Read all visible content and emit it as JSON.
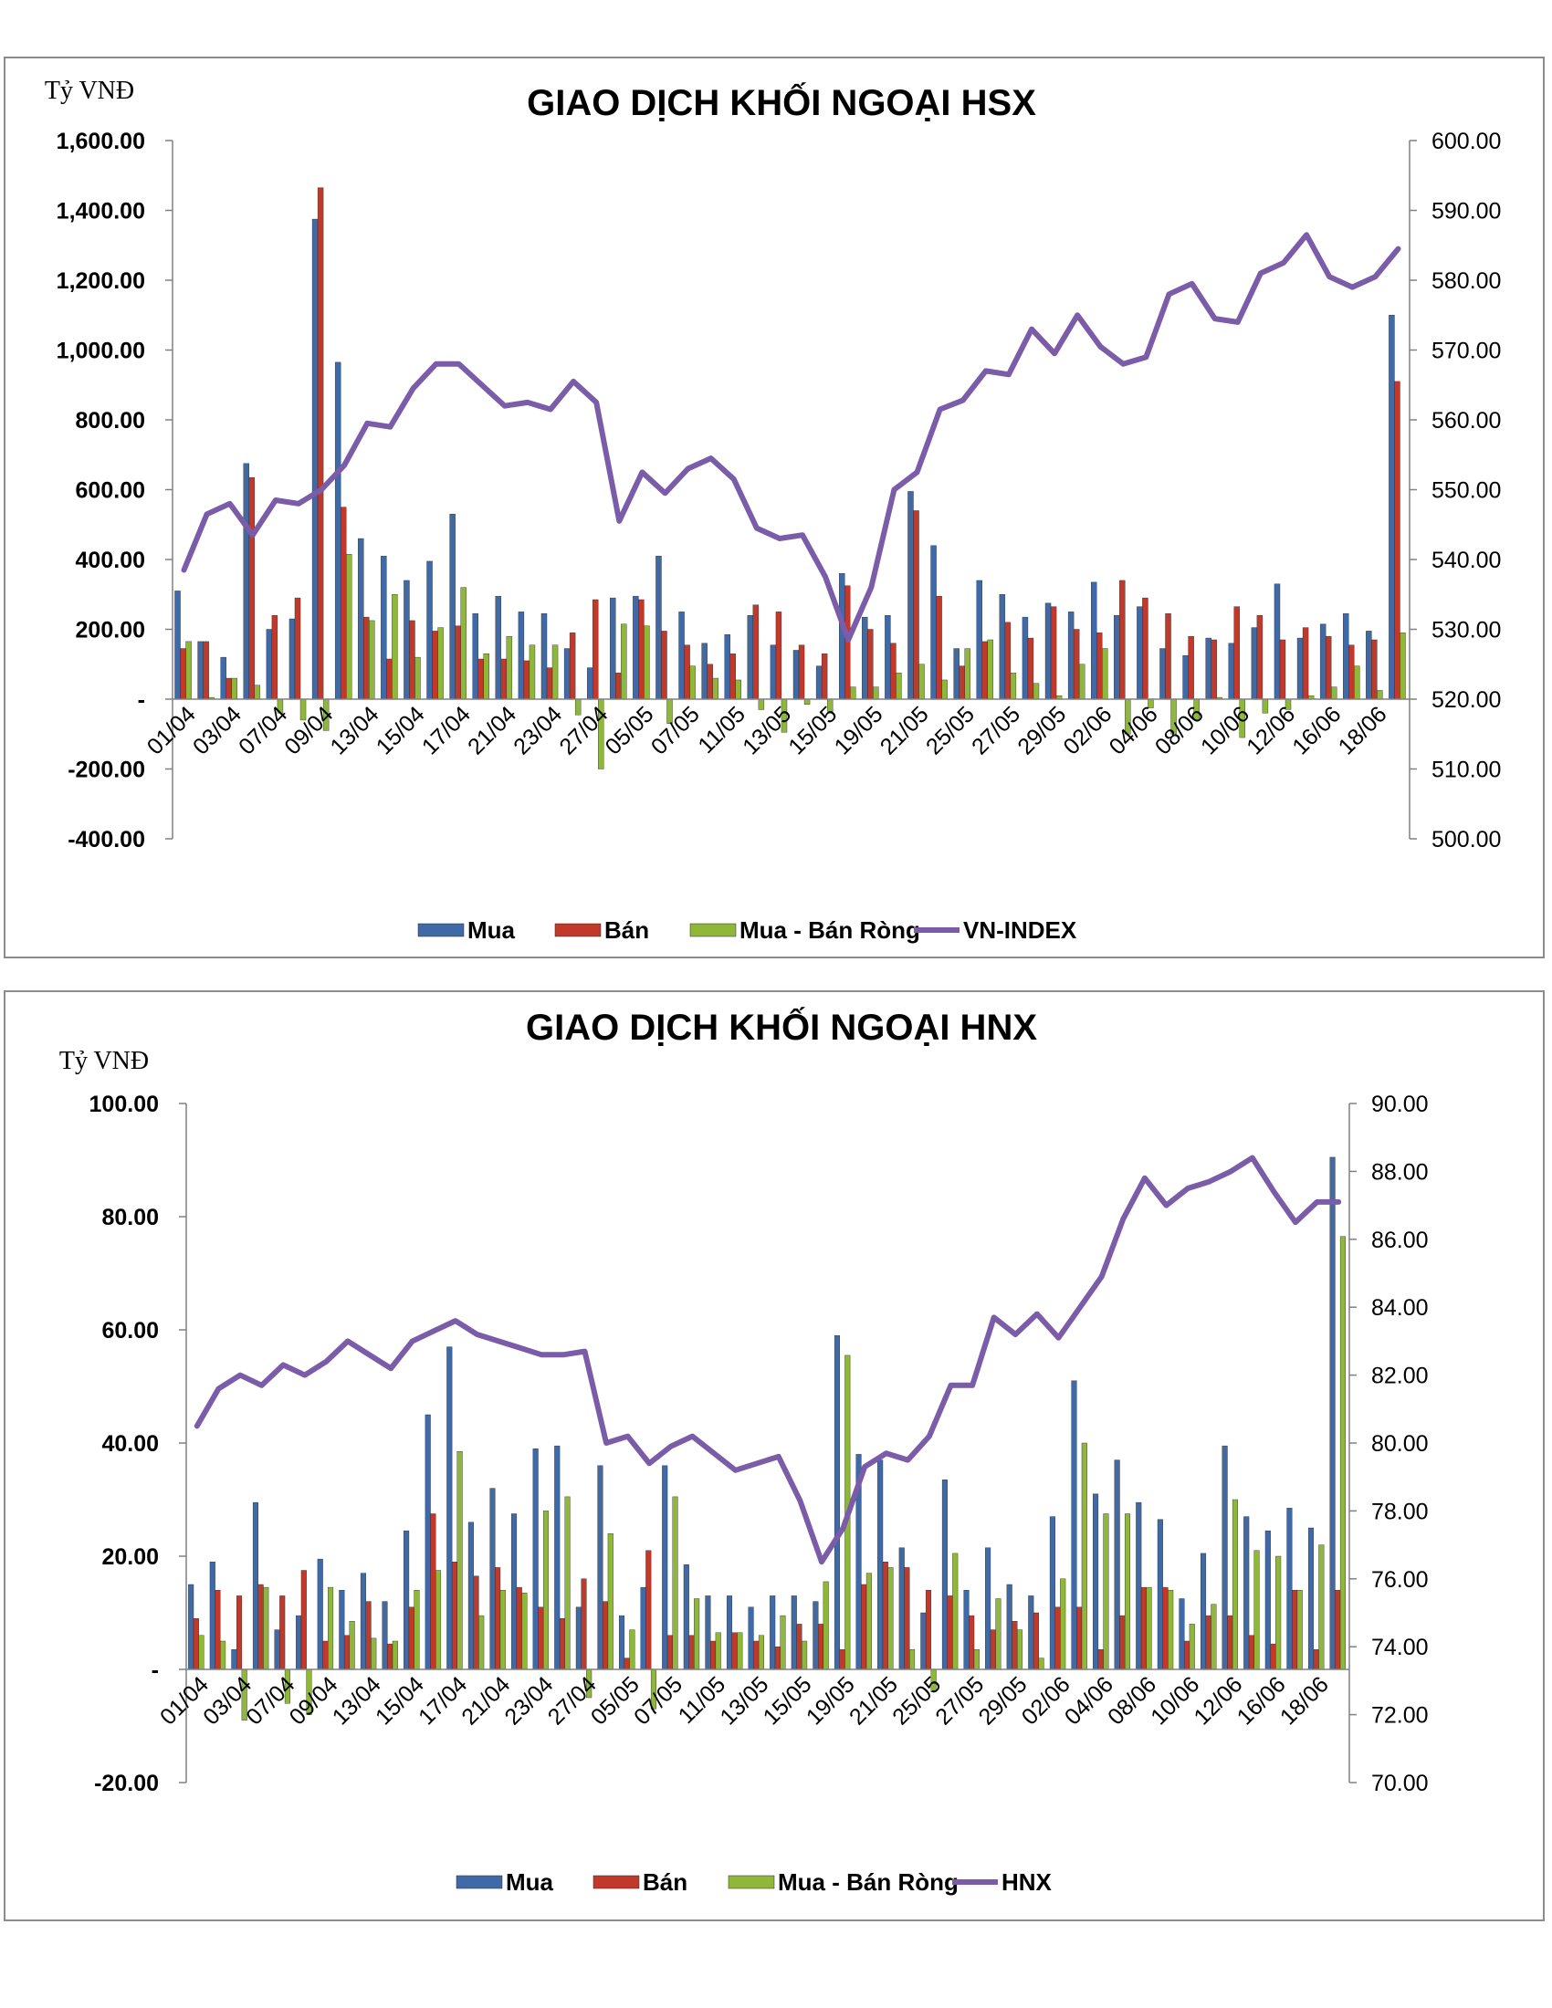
{
  "colors": {
    "mua": "#3f6aa6",
    "ban": "#c0392b",
    "rong": "#8fb83a",
    "index": "#7a5ca8",
    "axis": "#808080"
  },
  "chart_data": [
    {
      "type": "bar",
      "title": "GIAO DỊCH KHỐI NGOẠI HSX",
      "ylabel": "Tỷ VNĐ",
      "ylim": [
        -400,
        1600
      ],
      "y2lim": [
        500,
        600
      ],
      "yticks": [
        "1,600.00",
        "1,400.00",
        "1,200.00",
        "1,000.00",
        "800.00",
        "600.00",
        "400.00",
        "200.00",
        "-",
        "-200.00",
        "-400.00"
      ],
      "y2ticks": [
        "600.00",
        "590.00",
        "580.00",
        "570.00",
        "560.00",
        "550.00",
        "540.00",
        "530.00",
        "520.00",
        "510.00",
        "500.00"
      ],
      "xtick_labels": [
        "01/04",
        "03/04",
        "07/04",
        "09/04",
        "13/04",
        "15/04",
        "17/04",
        "21/04",
        "23/04",
        "27/04",
        "05/05",
        "07/05",
        "11/05",
        "13/05",
        "15/05",
        "19/05",
        "21/05",
        "25/05",
        "27/05",
        "29/05",
        "02/06",
        "04/06",
        "08/06",
        "10/06",
        "12/06",
        "16/06",
        "18/06"
      ],
      "legend": [
        "Mua",
        "Bán",
        "Mua - Bán Ròng",
        "VN-INDEX"
      ],
      "series": [
        {
          "name": "Mua",
          "values": [
            310,
            165,
            120,
            675,
            200,
            230,
            1375,
            965,
            460,
            410,
            340,
            395,
            530,
            245,
            295,
            250,
            245,
            145,
            90,
            290,
            295,
            410,
            250,
            160,
            185,
            240,
            155,
            140,
            95,
            360,
            235,
            240,
            595,
            440,
            145,
            340,
            300,
            235,
            275,
            250,
            335,
            240,
            265,
            145,
            125,
            175,
            160,
            205,
            330,
            175,
            215,
            245,
            195,
            1100
          ]
        },
        {
          "name": "Bán",
          "values": [
            145,
            165,
            60,
            635,
            240,
            290,
            1465,
            550,
            235,
            115,
            225,
            195,
            210,
            115,
            115,
            110,
            90,
            190,
            285,
            75,
            285,
            195,
            155,
            100,
            130,
            270,
            250,
            155,
            130,
            325,
            200,
            160,
            540,
            295,
            95,
            165,
            220,
            175,
            265,
            200,
            190,
            340,
            290,
            245,
            180,
            170,
            265,
            240,
            170,
            205,
            180,
            155,
            170,
            910
          ]
        },
        {
          "name": "Mua - Bán Ròng",
          "values": [
            165,
            5,
            60,
            40,
            -40,
            -60,
            -90,
            415,
            225,
            300,
            120,
            205,
            320,
            130,
            180,
            155,
            155,
            -45,
            -200,
            215,
            210,
            -70,
            95,
            60,
            55,
            -30,
            -95,
            -15,
            -35,
            35,
            35,
            75,
            100,
            55,
            145,
            170,
            75,
            45,
            10,
            100,
            145,
            -100,
            -25,
            -100,
            -60,
            5,
            -110,
            -40,
            -30,
            10,
            35,
            95,
            25,
            190
          ]
        },
        {
          "name": "VN-INDEX",
          "values": [
            538.5,
            546.5,
            548,
            543.5,
            548.5,
            548,
            550,
            553.5,
            559.5,
            559,
            564.5,
            568,
            568,
            565,
            562,
            562.5,
            561.5,
            565.5,
            562.5,
            545.5,
            552.5,
            549.5,
            553,
            554.5,
            551.5,
            544.5,
            543,
            543.5,
            537.5,
            528.5,
            536,
            550,
            552.5,
            561.5,
            562.8,
            567,
            566.5,
            573,
            569.5,
            575,
            570.5,
            568,
            569,
            578,
            579.5,
            574.5,
            574,
            581,
            582.5,
            586.5,
            580.5,
            579,
            580.5,
            584.5
          ]
        }
      ]
    },
    {
      "type": "bar",
      "title": "GIAO DỊCH KHỐI NGOẠI HNX",
      "ylabel": "Tỷ VNĐ",
      "ylim": [
        -20,
        100
      ],
      "y2lim": [
        70,
        90
      ],
      "yticks": [
        "100.00",
        "80.00",
        "60.00",
        "40.00",
        "20.00",
        "-",
        "-20.00"
      ],
      "y2ticks": [
        "90.00",
        "88.00",
        "86.00",
        "84.00",
        "82.00",
        "80.00",
        "78.00",
        "76.00",
        "74.00",
        "72.00",
        "70.00"
      ],
      "xtick_labels": [
        "01/04",
        "03/04",
        "07/04",
        "09/04",
        "13/04",
        "15/04",
        "17/04",
        "21/04",
        "23/04",
        "27/04",
        "05/05",
        "07/05",
        "11/05",
        "13/05",
        "15/05",
        "19/05",
        "21/05",
        "25/05",
        "27/05",
        "29/05",
        "02/06",
        "04/06",
        "08/06",
        "10/06",
        "12/06",
        "16/06",
        "18/06"
      ],
      "legend": [
        "Mua",
        "Bán",
        "Mua - Bán Ròng",
        "HNX"
      ],
      "series": [
        {
          "name": "Mua",
          "values": [
            15,
            19,
            3.5,
            29.5,
            7,
            9.5,
            19.5,
            14,
            17,
            12,
            24.5,
            45,
            57,
            26,
            32,
            27.5,
            39,
            39.5,
            11,
            36,
            9.5,
            14.5,
            36,
            18.5,
            13,
            13,
            11,
            13,
            13,
            12,
            59,
            38,
            37,
            21.5,
            10,
            33.5,
            14,
            21.5,
            15,
            13,
            27,
            51,
            31,
            37,
            29.5,
            26.5,
            12.5,
            20.5,
            39.5,
            27,
            24.5,
            28.5,
            25,
            90.5
          ]
        },
        {
          "name": "Bán",
          "values": [
            9,
            14,
            13,
            15,
            13,
            17.5,
            5,
            6,
            12,
            4.5,
            11,
            27.5,
            19,
            16.5,
            18,
            14.5,
            11,
            9,
            16,
            12,
            2,
            21,
            6,
            6,
            5,
            6.5,
            5,
            4,
            8,
            8,
            3.5,
            15,
            19,
            18,
            14,
            13,
            9.5,
            7,
            8.5,
            10,
            11,
            11,
            3.5,
            9.5,
            14.5,
            14.5,
            5,
            9.5,
            9.5,
            6,
            4.5,
            14,
            3.5,
            14
          ]
        },
        {
          "name": "Mua - Bán Ròng",
          "values": [
            6,
            5,
            -9,
            14.5,
            -6,
            -8,
            14.5,
            8.5,
            5.5,
            5,
            14,
            17.5,
            38.5,
            9.5,
            14,
            13.5,
            28,
            30.5,
            -5,
            24,
            7,
            -7,
            30.5,
            12.5,
            6.5,
            6.5,
            6,
            9.5,
            5,
            15.5,
            55.5,
            17,
            18,
            3.5,
            -4,
            20.5,
            3.5,
            12.5,
            7,
            2,
            16,
            40,
            27.5,
            27.5,
            14.5,
            14,
            8,
            11.5,
            30,
            21,
            20,
            14,
            22,
            76.5
          ]
        },
        {
          "name": "HNX",
          "values": [
            80.5,
            81.6,
            82,
            81.7,
            82.3,
            82,
            82.4,
            83,
            82.6,
            82.2,
            83,
            83.3,
            83.6,
            83.2,
            83,
            82.8,
            82.6,
            82.6,
            82.7,
            80,
            80.2,
            79.4,
            79.9,
            80.2,
            79.7,
            79.2,
            79.4,
            79.6,
            78.3,
            76.5,
            77.5,
            79.3,
            79.7,
            79.5,
            80.2,
            81.7,
            81.7,
            83.7,
            83.2,
            83.8,
            83.1,
            84,
            84.9,
            86.6,
            87.8,
            87,
            87.5,
            87.7,
            88,
            88.4,
            87.4,
            86.5,
            87.1,
            87.1
          ]
        }
      ]
    }
  ]
}
